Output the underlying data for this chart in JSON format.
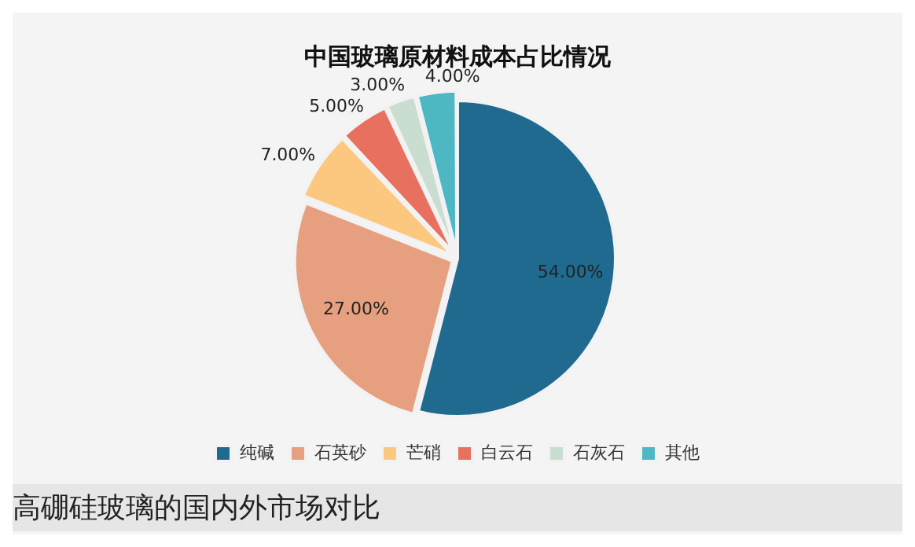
{
  "chart_data": {
    "type": "pie",
    "title": "中国玻璃原材料成本占比情况",
    "categories": [
      "纯碱",
      "石英砂",
      "芒硝",
      "白云石",
      "石灰石",
      "其他"
    ],
    "values": [
      54,
      27,
      7,
      5,
      3,
      4
    ],
    "value_labels": [
      "54.00%",
      "27.00%",
      "7.00%",
      "5.00%",
      "3.00%",
      "4.00%"
    ],
    "colors": [
      "#1f6a8e",
      "#e6a07f",
      "#fcc77f",
      "#e8705f",
      "#c9ddd0",
      "#4db7c4"
    ],
    "legend": "bottom",
    "annotations": [
      "高硼硅玻璃的国内外市场对比"
    ]
  }
}
